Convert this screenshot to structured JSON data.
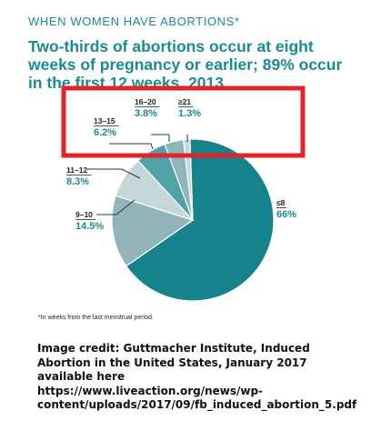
{
  "header": {
    "section_title": "WHEN WOMEN HAVE ABORTIONS*",
    "headline": "Two-thirds of abortions occur at eight weeks of pregnancy or earlier; 89% occur in the first 12 weeks, 2013"
  },
  "footnote": "*In weeks from the last menstrual period.",
  "credit": "Image credit: Guttmacher Institute, Induced Abortion in the United States, January 2017 available here\nhttps://www.liveaction.org/news/wp-content/uploads/2017/09/fb_induced_abortion_5.pdf",
  "colors": {
    "teal_dark": "#16838c",
    "teal_mid": "#4fa3a9",
    "gray_blue": "#90b4b8",
    "gray_light": "#c5d7d8",
    "highlight_box": "#e2232a",
    "text_teal": "#1a8a93"
  },
  "chart_data": {
    "type": "pie",
    "title": "",
    "categories": [
      "≤8",
      "9–10",
      "11–12",
      "13–15",
      "16–20",
      "≥21"
    ],
    "values": [
      66,
      14.5,
      8.3,
      6.2,
      3.8,
      1.3
    ],
    "value_labels": [
      "66%",
      "14.5%",
      "8.3%",
      "6.2%",
      "3.8%",
      "1.3%"
    ]
  }
}
